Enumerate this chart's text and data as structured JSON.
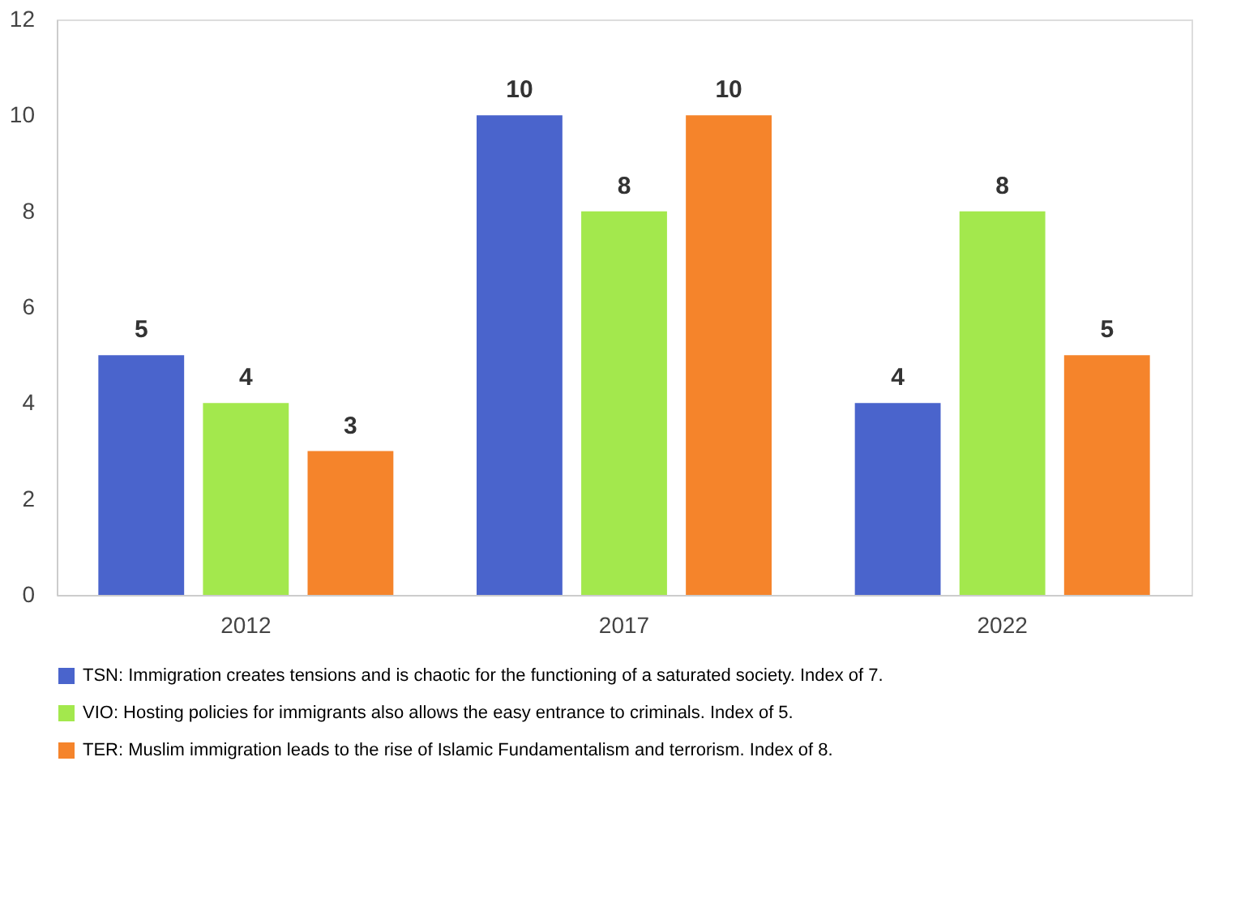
{
  "chart_data": {
    "type": "bar",
    "categories": [
      "2012",
      "2017",
      "2022"
    ],
    "series": [
      {
        "name": "TSN: Immigration creates tensions and is chaotic for the functioning of a saturated society. Index of 7.",
        "color": "#4a64cc",
        "values": [
          5,
          10,
          4
        ]
      },
      {
        "name": "VIO: Hosting policies for immigrants also allows the easy entrance to criminals. Index of 5.",
        "color": "#a3e84d",
        "values": [
          4,
          8,
          8
        ]
      },
      {
        "name": "TER: Muslim immigration leads to the rise of Islamic Fundamentalism and terrorism. Index of 8.",
        "color": "#f5842b",
        "values": [
          3,
          10,
          5
        ]
      }
    ],
    "ylim": [
      0,
      12
    ],
    "yticks": [
      0,
      2,
      4,
      6,
      8,
      10,
      12
    ],
    "grid": false,
    "legend": "bottom",
    "data_labels": true
  }
}
